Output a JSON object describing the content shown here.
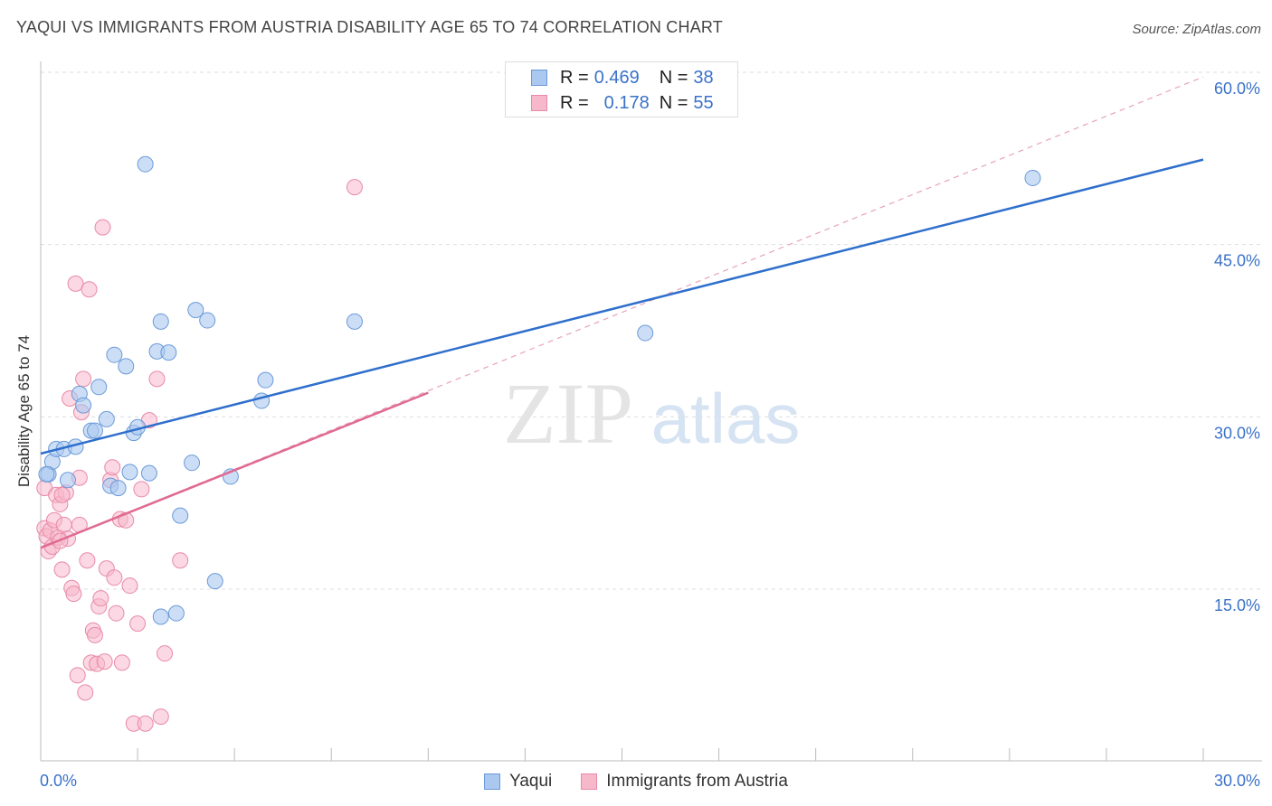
{
  "header": {
    "title": "YAQUI VS IMMIGRANTS FROM AUSTRIA DISABILITY AGE 65 TO 74 CORRELATION CHART",
    "source": "Source: ZipAtlas.com"
  },
  "watermark": {
    "zip": "ZIP",
    "atlas": "atlas"
  },
  "legend_top": [
    {
      "r_label": "R =",
      "r_value": "0.469",
      "n_label": "N =",
      "n_value": "38"
    },
    {
      "r_label": "R =",
      "r_value": "0.178",
      "n_label": "N =",
      "n_value": "55"
    }
  ],
  "legend_bottom": {
    "series1": "Yaqui",
    "series2": "Immigrants from Austria"
  },
  "colors": {
    "yaqui_fill": "#aac8f0",
    "yaqui_stroke": "#6a9ad8",
    "yaqui_line": "#2f6fcc",
    "austria_fill": "#f7b8cc",
    "austria_stroke": "#e88aa8",
    "austria_line": "#e06a92",
    "tick_label": "#3a72c8",
    "grid": "#dddddd"
  },
  "chart_data": {
    "type": "scatter",
    "title": "YAQUI VS IMMIGRANTS FROM AUSTRIA DISABILITY AGE 65 TO 74 CORRELATION CHART",
    "xlabel": "",
    "ylabel": "Disability Age 65 to 74",
    "xlim": [
      0,
      30
    ],
    "ylim": [
      0,
      60
    ],
    "x_tick_labels": [
      "0.0%",
      "30.0%"
    ],
    "y_ticks": [
      15,
      30,
      45,
      60
    ],
    "y_tick_labels": [
      "15.0%",
      "30.0%",
      "45.0%",
      "60.0%"
    ],
    "grid": true,
    "series": [
      {
        "name": "Yaqui",
        "R": 0.469,
        "N": 38,
        "points": [
          [
            0.2,
            25.0
          ],
          [
            0.3,
            26.1
          ],
          [
            0.4,
            27.2
          ],
          [
            0.6,
            27.2
          ],
          [
            0.7,
            24.5
          ],
          [
            0.9,
            27.4
          ],
          [
            1.0,
            32.0
          ],
          [
            1.1,
            31.0
          ],
          [
            1.3,
            28.8
          ],
          [
            1.4,
            28.8
          ],
          [
            1.5,
            32.6
          ],
          [
            1.7,
            29.8
          ],
          [
            1.8,
            24.0
          ],
          [
            1.9,
            35.4
          ],
          [
            2.0,
            23.8
          ],
          [
            2.2,
            34.4
          ],
          [
            2.3,
            25.2
          ],
          [
            2.4,
            28.6
          ],
          [
            2.5,
            29.1
          ],
          [
            2.7,
            52.0
          ],
          [
            2.8,
            25.1
          ],
          [
            3.0,
            35.7
          ],
          [
            3.1,
            12.6
          ],
          [
            3.1,
            38.3
          ],
          [
            3.3,
            35.6
          ],
          [
            3.5,
            12.9
          ],
          [
            3.6,
            21.4
          ],
          [
            3.9,
            26.0
          ],
          [
            4.0,
            39.3
          ],
          [
            4.3,
            38.4
          ],
          [
            4.5,
            15.7
          ],
          [
            4.9,
            24.8
          ],
          [
            5.7,
            31.4
          ],
          [
            5.8,
            33.2
          ],
          [
            8.1,
            38.3
          ],
          [
            15.6,
            37.3
          ],
          [
            25.6,
            50.8
          ],
          [
            0.15,
            25.0
          ]
        ],
        "trend": {
          "x": [
            0,
            30
          ],
          "y": [
            26.8,
            52.4
          ]
        }
      },
      {
        "name": "Immigrants from Austria",
        "R": 0.178,
        "N": 55,
        "points": [
          [
            0.1,
            23.8
          ],
          [
            0.1,
            20.3
          ],
          [
            0.15,
            19.6
          ],
          [
            0.2,
            18.3
          ],
          [
            0.25,
            20.1
          ],
          [
            0.3,
            18.7
          ],
          [
            0.35,
            21.0
          ],
          [
            0.4,
            23.2
          ],
          [
            0.45,
            19.5
          ],
          [
            0.5,
            22.4
          ],
          [
            0.55,
            16.7
          ],
          [
            0.6,
            20.6
          ],
          [
            0.65,
            23.4
          ],
          [
            0.7,
            19.4
          ],
          [
            0.75,
            31.6
          ],
          [
            0.8,
            15.1
          ],
          [
            0.85,
            14.6
          ],
          [
            0.9,
            41.6
          ],
          [
            0.95,
            7.5
          ],
          [
            1.0,
            20.6
          ],
          [
            1.05,
            30.4
          ],
          [
            1.1,
            33.3
          ],
          [
            1.15,
            6.0
          ],
          [
            1.2,
            17.5
          ],
          [
            1.25,
            41.1
          ],
          [
            1.3,
            8.6
          ],
          [
            1.35,
            11.4
          ],
          [
            1.4,
            11.0
          ],
          [
            1.45,
            8.5
          ],
          [
            1.5,
            13.5
          ],
          [
            1.55,
            14.2
          ],
          [
            1.6,
            46.5
          ],
          [
            1.65,
            8.7
          ],
          [
            1.7,
            16.8
          ],
          [
            1.8,
            24.5
          ],
          [
            1.85,
            25.6
          ],
          [
            1.9,
            16.0
          ],
          [
            1.95,
            12.9
          ],
          [
            2.05,
            21.1
          ],
          [
            2.1,
            8.6
          ],
          [
            2.2,
            21.0
          ],
          [
            2.3,
            15.3
          ],
          [
            2.4,
            3.3
          ],
          [
            2.5,
            12.0
          ],
          [
            2.6,
            23.7
          ],
          [
            2.7,
            3.3
          ],
          [
            2.8,
            29.7
          ],
          [
            3.0,
            33.3
          ],
          [
            3.1,
            3.9
          ],
          [
            3.2,
            9.4
          ],
          [
            3.6,
            17.5
          ],
          [
            8.1,
            50.0
          ],
          [
            0.55,
            23.2
          ],
          [
            1.0,
            24.7
          ],
          [
            0.5,
            19.2
          ]
        ],
        "trend": {
          "x": [
            0,
            10
          ],
          "y": [
            18.6,
            32.1
          ]
        },
        "trend_extended": {
          "x": [
            0,
            30
          ],
          "y": [
            18.6,
            59.6
          ]
        }
      }
    ]
  }
}
